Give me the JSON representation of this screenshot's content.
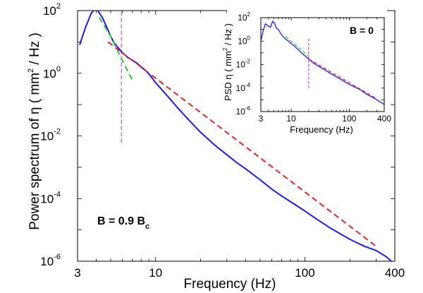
{
  "chart_data": [
    {
      "id": "main",
      "type": "line",
      "scale": "log-log",
      "xlabel": "Frequency (Hz)",
      "ylabel_parts": [
        "Power spectrum of η ( mm",
        "2",
        " / Hz )"
      ],
      "xlim": [
        3,
        400
      ],
      "ylim": [
        1e-06,
        100
      ],
      "xticks": [
        {
          "v": 3,
          "label": "3"
        },
        {
          "v": 10,
          "label": "10"
        },
        {
          "v": 100,
          "label": "100"
        },
        {
          "v": 400,
          "label": "400"
        }
      ],
      "yticks": [
        {
          "v": 100,
          "base": "10",
          "exp": "2"
        },
        {
          "v": 1,
          "base": "10",
          "exp": "0"
        },
        {
          "v": 0.01,
          "base": "10",
          "exp": "-2"
        },
        {
          "v": 0.0001,
          "base": "10",
          "exp": "-4"
        },
        {
          "v": 1e-06,
          "base": "10",
          "exp": "-6"
        }
      ],
      "annotation": {
        "text": "B = 0.9 B",
        "sub": "c"
      },
      "series": [
        {
          "name": "spectrum",
          "color": "#1a1aff",
          "style": "solid",
          "x": [
            3.1,
            3.4,
            3.7,
            3.9,
            4.1,
            4.4,
            4.7,
            5.0,
            5.3,
            5.7,
            6.0,
            6.5,
            7.0,
            7.5,
            8.0,
            8.6,
            9.2,
            10,
            11,
            12.5,
            14,
            16,
            18,
            20,
            25,
            30,
            35,
            40,
            50,
            60,
            70,
            80,
            100,
            120,
            150,
            200,
            250,
            300,
            350,
            400
          ],
          "y": [
            8,
            30,
            80,
            110,
            100,
            60,
            30,
            15,
            9,
            6,
            4.5,
            3.2,
            2.6,
            2.1,
            1.6,
            1.2,
            0.85,
            0.5,
            0.3,
            0.15,
            0.08,
            0.04,
            0.022,
            0.013,
            0.005,
            0.0025,
            0.0014,
            0.0009,
            0.0004,
            0.0002,
            0.00012,
            8e-05,
            4e-05,
            2.2e-05,
            1.1e-05,
            5e-06,
            3e-06,
            2.2e-06,
            1.4e-06,
            8e-07
          ]
        },
        {
          "name": "low-frequency fit",
          "color": "#22cc22",
          "style": "dashed",
          "x": [
            4.2,
            5.0,
            6.0,
            7.0
          ],
          "y": [
            60,
            15,
            2.5,
            0.6
          ]
        },
        {
          "name": "power-law fit",
          "color": "#ee2222",
          "style": "dashed",
          "x": [
            4.8,
            300
          ],
          "y": [
            10,
            3e-06
          ]
        }
      ],
      "vline": {
        "x": 5.9,
        "y_from": 0.006,
        "y_to": 100,
        "color": "#cc22cc"
      }
    },
    {
      "id": "inset",
      "type": "line",
      "scale": "log-log",
      "xlabel": "Frequency (Hz)",
      "ylabel_parts": [
        "PSD η  ( mm",
        "2",
        " / Hz )"
      ],
      "xlim": [
        3,
        400
      ],
      "ylim": [
        1e-06,
        100
      ],
      "xticks": [
        {
          "v": 3,
          "label": "3"
        },
        {
          "v": 10,
          "label": "10"
        },
        {
          "v": 100,
          "label": "100"
        },
        {
          "v": 400,
          "label": "400"
        }
      ],
      "yticks": [
        {
          "v": 100,
          "base": "10",
          "exp": "2"
        },
        {
          "v": 1,
          "base": "10",
          "exp": "0"
        },
        {
          "v": 0.01,
          "base": "10",
          "exp": "-2"
        },
        {
          "v": 0.0001,
          "base": "10",
          "exp": "-4"
        },
        {
          "v": 1e-06,
          "base": "10",
          "exp": "-6"
        }
      ],
      "annotation": {
        "text": "B = 0",
        "sub": ""
      },
      "series": [
        {
          "name": "spectrum",
          "color": "#1a1aff",
          "style": "solid",
          "x": [
            3.0,
            3.3,
            3.6,
            4.0,
            4.4,
            4.8,
            5.2,
            5.6,
            6.0,
            6.5,
            7.0,
            8.0,
            9.0,
            10,
            12,
            15,
            20,
            25,
            30,
            40,
            50,
            70,
            100,
            150,
            200,
            300,
            400
          ],
          "y": [
            1,
            8,
            30,
            20,
            15,
            50,
            30,
            12,
            10,
            5,
            3,
            1.5,
            1,
            0.6,
            0.3,
            0.1,
            0.03,
            0.012,
            0.007,
            0.003,
            0.0015,
            0.0006,
            0.0002,
            8e-05,
            3e-05,
            1e-05,
            4e-06
          ]
        },
        {
          "name": "low-frequency fit",
          "color": "#22cc22",
          "style": "dashed",
          "x": [
            8,
            20
          ],
          "y": [
            2.5,
            0.05
          ]
        },
        {
          "name": "power-law fit",
          "color": "#ee2222",
          "style": "dashed",
          "x": [
            20,
            300
          ],
          "y": [
            0.03,
            1.2e-05
          ]
        }
      ],
      "vline": {
        "x": 20,
        "y_from": 0.0001,
        "y_to": 2,
        "color": "#cc22cc"
      }
    }
  ]
}
